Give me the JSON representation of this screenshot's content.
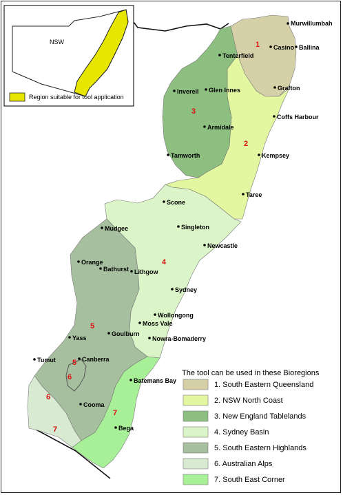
{
  "inset": {
    "state_label": "NSW",
    "legend_label": "Region suitable for tool application",
    "highlight_color": "#e6e600"
  },
  "legend": {
    "title": "The tool can be used in these Bioregions",
    "items": [
      {
        "label": "1. South Eastern Queensland",
        "color": "#d6d0a8"
      },
      {
        "label": "2. NSW North Coast",
        "color": "#e2f7a0"
      },
      {
        "label": "3. New England Tablelands",
        "color": "#8dbf80"
      },
      {
        "label": "4. Sydney Basin",
        "color": "#dcf5c8"
      },
      {
        "label": "5. South Eastern Highlands",
        "color": "#a6bf9e"
      },
      {
        "label": "6. Australian Alps",
        "color": "#d8ebd2"
      },
      {
        "label": "7. South East Corner",
        "color": "#a8f098"
      }
    ]
  },
  "region_numbers": [
    "1",
    "2",
    "3",
    "4",
    "5",
    "5",
    "6",
    "7",
    "7"
  ],
  "towns": [
    "Murwillumbah",
    "Casino",
    "Ballina",
    "Tenterfield",
    "Inverell",
    "Glen Innes",
    "Grafton",
    "Coffs Harbour",
    "Armidale",
    "Kempsey",
    "Tamworth",
    "Taree",
    "Scone",
    "Singleton",
    "Mudgee",
    "Newcastle",
    "Orange",
    "Bathurst",
    "Lithgow",
    "Sydney",
    "Wollongong",
    "Moss Vale",
    "Goulburn",
    "Nowra-Bomaderry",
    "Yass",
    "Tumut",
    "Canberra",
    "Batemans Bay",
    "Cooma",
    "Bega"
  ]
}
